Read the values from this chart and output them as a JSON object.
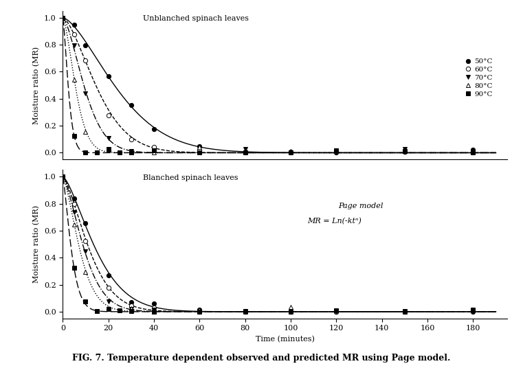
{
  "title": "FIG. 7. Temperature dependent observed and predicted MR using Page model.",
  "subplot1_label": "Unblanched spinach leaves",
  "subplot2_label": "Blanched spinach leaves",
  "model_text1": "Page model",
  "model_text2": "MR = Ln(-ktⁿ)",
  "ylabel": "Moisture ratio (MR)",
  "xlabel": "Time (minutes)",
  "xlim": [
    0,
    195
  ],
  "ylim": [
    -0.05,
    1.05
  ],
  "xticks": [
    0,
    20,
    40,
    60,
    80,
    100,
    120,
    140,
    160,
    180
  ],
  "yticks": [
    0.0,
    0.2,
    0.4,
    0.6,
    0.8,
    1.0
  ],
  "temps": [
    "50°C",
    "60°C",
    "70°C",
    "80°C",
    "90°C"
  ],
  "unblanched_params": [
    {
      "k": 0.0055,
      "n": 1.55
    },
    {
      "k": 0.011,
      "n": 1.55
    },
    {
      "k": 0.022,
      "n": 1.55
    },
    {
      "k": 0.05,
      "n": 1.55
    },
    {
      "k": 0.2,
      "n": 1.45
    }
  ],
  "blanched_params": [
    {
      "k": 0.016,
      "n": 1.45
    },
    {
      "k": 0.022,
      "n": 1.45
    },
    {
      "k": 0.03,
      "n": 1.45
    },
    {
      "k": 0.042,
      "n": 1.45
    },
    {
      "k": 0.13,
      "n": 1.35
    }
  ],
  "unblanched_obs_times": [
    [
      0,
      5,
      10,
      20,
      30,
      40,
      60,
      80,
      100,
      120,
      150,
      180
    ],
    [
      0,
      5,
      10,
      20,
      30,
      40,
      60,
      80,
      100,
      120,
      150,
      180
    ],
    [
      0,
      5,
      10,
      20,
      30,
      40,
      60,
      80,
      100,
      120,
      150
    ],
    [
      0,
      5,
      10,
      20,
      30,
      40,
      60,
      80,
      100,
      120
    ],
    [
      0,
      5,
      10,
      15,
      20,
      25,
      30,
      40,
      60,
      80,
      100,
      120,
      150,
      180
    ]
  ],
  "blanched_obs_times": [
    [
      0,
      5,
      10,
      20,
      30,
      40,
      60,
      80,
      100,
      120,
      150,
      180
    ],
    [
      0,
      5,
      10,
      20,
      30,
      40,
      60,
      80,
      100,
      120,
      150,
      180
    ],
    [
      0,
      5,
      10,
      20,
      30,
      40,
      60,
      80,
      100,
      120,
      150
    ],
    [
      0,
      5,
      10,
      20,
      30,
      40,
      60,
      80,
      100
    ],
    [
      0,
      5,
      10,
      15,
      20,
      25,
      30,
      40,
      60,
      80,
      100,
      120,
      150,
      180
    ]
  ],
  "background_color": "#ffffff",
  "marker_size": 4.5,
  "line_width": 1.0,
  "font_size_label": 8,
  "font_size_tick": 8,
  "font_size_legend": 7.5,
  "font_size_title": 9
}
